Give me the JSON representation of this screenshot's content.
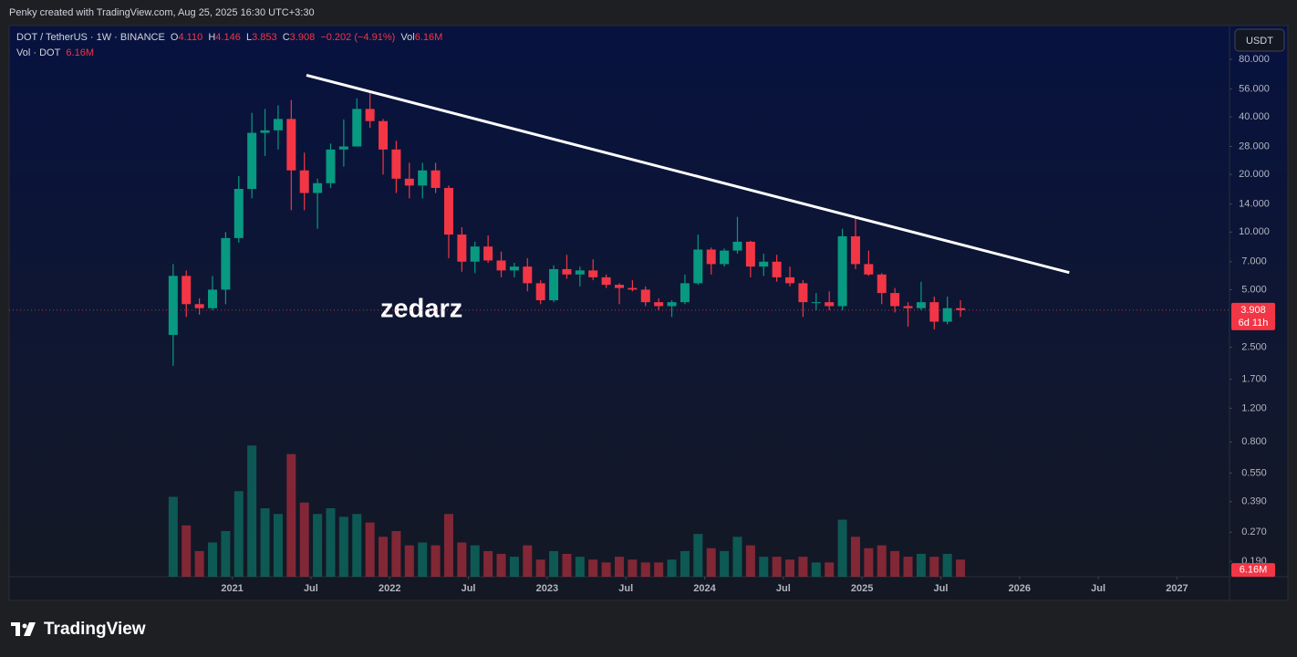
{
  "header": {
    "caption": "Penky created with TradingView.com, Aug 25, 2025 16:30 UTC+3:30"
  },
  "legend": {
    "symbol": "DOT / TetherUS · 1W · BINANCE",
    "open_label": "O",
    "open": "4.110",
    "high_label": "H",
    "high": "4.146",
    "low_label": "L",
    "low": "3.853",
    "close_label": "C",
    "close": "3.908",
    "change": "−0.202 (−4.91%)",
    "volume_label": "Vol",
    "volume": "6.16M",
    "volume_study": "Vol · DOT",
    "volume_study_value": "6.16M"
  },
  "currency_button": "USDT",
  "watermark": "zedarz",
  "footer_logo": "TradingView",
  "chart_data": {
    "type": "candlestick",
    "log_scale": true,
    "grid": false,
    "up_color": "#089981",
    "down_color": "#f23645",
    "xlim": [
      "2019-08-01",
      "2027-05-01"
    ],
    "xticks": [
      {
        "value": "2021-01-01",
        "label": "2021"
      },
      {
        "value": "2021-07-01",
        "label": "Jul"
      },
      {
        "value": "2022-01-01",
        "label": "2022"
      },
      {
        "value": "2022-07-01",
        "label": "Jul"
      },
      {
        "value": "2023-01-01",
        "label": "2023"
      },
      {
        "value": "2023-07-01",
        "label": "Jul"
      },
      {
        "value": "2024-01-01",
        "label": "2024"
      },
      {
        "value": "2024-07-01",
        "label": "Jul"
      },
      {
        "value": "2025-01-01",
        "label": "2025"
      },
      {
        "value": "2025-07-01",
        "label": "Jul"
      },
      {
        "value": "2026-01-01",
        "label": "2026"
      },
      {
        "value": "2026-07-01",
        "label": "Jul"
      },
      {
        "value": "2027-01-01",
        "label": "2027"
      }
    ],
    "ylim": [
      0.158,
      120
    ],
    "yticks": [
      {
        "value": 80,
        "label": "80.000"
      },
      {
        "value": 56,
        "label": "56.000"
      },
      {
        "value": 40,
        "label": "40.000"
      },
      {
        "value": 28,
        "label": "28.000"
      },
      {
        "value": 20,
        "label": "20.000"
      },
      {
        "value": 14,
        "label": "14.000"
      },
      {
        "value": 10,
        "label": "10.000"
      },
      {
        "value": 7,
        "label": "7.000"
      },
      {
        "value": 5,
        "label": "5.000"
      },
      {
        "value": 2.5,
        "label": "2.500"
      },
      {
        "value": 1.7,
        "label": "1.700"
      },
      {
        "value": 1.2,
        "label": "1.200"
      },
      {
        "value": 0.8,
        "label": "0.800"
      },
      {
        "value": 0.55,
        "label": "0.550"
      },
      {
        "value": 0.39,
        "label": "0.390"
      },
      {
        "value": 0.27,
        "label": "0.270"
      },
      {
        "value": 0.19,
        "label": "0.190"
      }
    ],
    "x": [
      "2020-08",
      "2020-09",
      "2020-10",
      "2020-11",
      "2020-12",
      "2021-01",
      "2021-02",
      "2021-03",
      "2021-04",
      "2021-05",
      "2021-06",
      "2021-07",
      "2021-08",
      "2021-09",
      "2021-10",
      "2021-11",
      "2021-12",
      "2022-01",
      "2022-02",
      "2022-03",
      "2022-04",
      "2022-05",
      "2022-06",
      "2022-07",
      "2022-08",
      "2022-09",
      "2022-10",
      "2022-11",
      "2022-12",
      "2023-01",
      "2023-02",
      "2023-03",
      "2023-04",
      "2023-05",
      "2023-06",
      "2023-07",
      "2023-08",
      "2023-09",
      "2023-10",
      "2023-11",
      "2023-12",
      "2024-01",
      "2024-02",
      "2024-03",
      "2024-04",
      "2024-05",
      "2024-06",
      "2024-07",
      "2024-08",
      "2024-09",
      "2024-10",
      "2024-11",
      "2024-12",
      "2025-01",
      "2025-02",
      "2025-03",
      "2025-04",
      "2025-05",
      "2025-06",
      "2025-07",
      "2025-08"
    ],
    "open": [
      2.9,
      5.9,
      4.2,
      4.0,
      5.0,
      9.3,
      16.8,
      33,
      34,
      39,
      21,
      16,
      18,
      27,
      28,
      44,
      38,
      27,
      19,
      17.5,
      21,
      17,
      9.7,
      7.0,
      8.4,
      7.1,
      6.3,
      6.6,
      5.4,
      4.4,
      6.4,
      6.0,
      6.3,
      5.8,
      5.3,
      5.1,
      5.0,
      4.3,
      4.1,
      4.3,
      5.4,
      8.1,
      6.8,
      8.0,
      8.9,
      6.6,
      7.0,
      5.8,
      5.4,
      4.3,
      4.3,
      4.1,
      9.5,
      6.8,
      6.0,
      4.8,
      4.1,
      4.0,
      4.3,
      3.4,
      4.0
    ],
    "high": [
      6.8,
      6.3,
      4.5,
      5.9,
      10.0,
      19.6,
      42,
      44,
      46,
      49,
      26,
      19,
      29,
      38.8,
      50,
      55,
      39,
      30,
      23,
      23,
      23,
      17.5,
      10.6,
      8.9,
      9.6,
      7.9,
      6.9,
      7.3,
      5.6,
      6.7,
      7.6,
      6.6,
      7.2,
      6.0,
      5.4,
      5.6,
      5.2,
      4.5,
      4.4,
      6.0,
      9.7,
      8.3,
      8.2,
      12.0,
      9.0,
      7.7,
      7.6,
      6.6,
      5.6,
      4.8,
      4.9,
      10.4,
      11.9,
      8.0,
      6.1,
      5.1,
      4.3,
      5.5,
      4.6,
      4.6,
      4.4
    ],
    "low": [
      2.0,
      3.6,
      3.7,
      3.9,
      4.2,
      8.8,
      15,
      25,
      27,
      13,
      13,
      10.4,
      17,
      22,
      28,
      35,
      20,
      16,
      15,
      15,
      16,
      7.3,
      6.2,
      6.1,
      6.9,
      5.8,
      5.8,
      4.9,
      4.2,
      4.3,
      5.7,
      5.2,
      5.6,
      5.1,
      4.2,
      4.9,
      4.1,
      3.9,
      3.6,
      4.2,
      5.3,
      6.0,
      6.6,
      7.7,
      5.8,
      5.9,
      5.5,
      5.2,
      3.6,
      3.9,
      3.9,
      3.9,
      6.4,
      5.9,
      4.2,
      3.8,
      3.2,
      3.9,
      3.1,
      3.3,
      3.6
    ],
    "close": [
      5.9,
      4.2,
      4.0,
      5.0,
      9.3,
      16.8,
      33,
      34,
      39,
      21,
      16,
      18,
      27,
      28,
      44,
      38,
      27,
      19,
      17.5,
      21,
      17,
      9.7,
      7.0,
      8.4,
      7.1,
      6.3,
      6.6,
      5.4,
      4.4,
      6.4,
      6.0,
      6.3,
      5.8,
      5.3,
      5.1,
      5.0,
      4.3,
      4.1,
      4.3,
      5.4,
      8.1,
      6.8,
      8.0,
      8.9,
      6.6,
      7.0,
      5.8,
      5.4,
      4.3,
      4.3,
      4.1,
      9.5,
      6.8,
      6.0,
      4.8,
      4.1,
      4.0,
      4.3,
      3.4,
      4.0,
      3.908
    ],
    "volume": [
      140,
      90,
      45,
      60,
      80,
      150,
      230,
      120,
      110,
      215,
      130,
      110,
      120,
      105,
      110,
      95,
      70,
      80,
      55,
      60,
      55,
      110,
      60,
      55,
      45,
      40,
      35,
      55,
      30,
      45,
      40,
      35,
      30,
      25,
      35,
      30,
      25,
      25,
      30,
      45,
      75,
      50,
      45,
      70,
      55,
      35,
      35,
      30,
      35,
      25,
      25,
      100,
      70,
      50,
      55,
      45,
      35,
      40,
      35,
      40,
      30
    ],
    "vlim": [
      0,
      240
    ],
    "last_price": {
      "value": 3.908,
      "label": "3.908"
    },
    "countdown": "6d 11h",
    "last_volume": {
      "value": 6.16,
      "label": "6.16M"
    },
    "trendline": {
      "x": [
        "2021-06-21",
        "2026-04-25"
      ],
      "y": [
        66,
        6.14
      ],
      "color": "#ffffff"
    }
  }
}
